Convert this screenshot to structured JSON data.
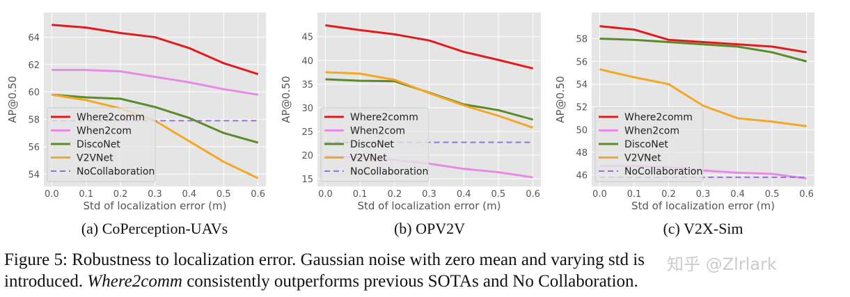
{
  "chart_data": [
    {
      "type": "line",
      "ylabel": "AP@0.50",
      "xlabel": "Std of localization error (m)",
      "caption": "(a) CoPerception-UAVs",
      "x": [
        0.0,
        0.1,
        0.2,
        0.3,
        0.4,
        0.5,
        0.6
      ],
      "xticks": [
        "0.0",
        "0.1",
        "0.2",
        "0.3",
        "0.4",
        "0.5",
        "0.6"
      ],
      "yticks": [
        54,
        56,
        58,
        60,
        62,
        64
      ],
      "ylim": [
        53.1,
        65.8
      ],
      "xlim": [
        -0.023,
        0.623
      ],
      "grid": true,
      "legend": "lower-left",
      "series": [
        {
          "name": "Where2comm",
          "color": "#e31a1c",
          "values": [
            64.9,
            64.7,
            64.3,
            64.0,
            63.2,
            62.1,
            61.3
          ]
        },
        {
          "name": "When2com",
          "color": "#e78ae6",
          "values": [
            61.6,
            61.6,
            61.5,
            61.1,
            60.7,
            60.2,
            59.8
          ]
        },
        {
          "name": "DiscoNet",
          "color": "#5b8a2a",
          "values": [
            59.8,
            59.6,
            59.5,
            58.9,
            58.1,
            57.0,
            56.3
          ]
        },
        {
          "name": "V2VNet",
          "color": "#f5a623",
          "values": [
            59.8,
            59.4,
            58.8,
            57.9,
            56.4,
            54.9,
            53.7
          ]
        },
        {
          "name": "NoCollaboration",
          "color": "#9370db",
          "dashed": true,
          "values": [
            57.9,
            57.9,
            57.9,
            57.9,
            57.9,
            57.9,
            57.9
          ]
        }
      ]
    },
    {
      "type": "line",
      "ylabel": "AP@0.50",
      "xlabel": "Std of localization error (m)",
      "caption": "(b) OPV2V",
      "x": [
        0.0,
        0.1,
        0.2,
        0.3,
        0.4,
        0.5,
        0.6
      ],
      "xticks": [
        "0.0",
        "0.1",
        "0.2",
        "0.3",
        "0.4",
        "0.5",
        "0.6"
      ],
      "yticks": [
        15,
        20,
        25,
        30,
        35,
        40,
        45
      ],
      "ylim": [
        13.4,
        50.1
      ],
      "xlim": [
        -0.023,
        0.623
      ],
      "grid": true,
      "legend": "lower-left",
      "series": [
        {
          "name": "Where2comm",
          "color": "#e31a1c",
          "values": [
            47.4,
            46.4,
            45.5,
            44.2,
            41.8,
            40.1,
            38.3
          ]
        },
        {
          "name": "When2com",
          "color": "#e78ae6",
          "values": [
            19.8,
            19.5,
            19.0,
            18.2,
            17.1,
            16.4,
            15.3
          ]
        },
        {
          "name": "DiscoNet",
          "color": "#5b8a2a",
          "values": [
            36.0,
            35.7,
            35.6,
            33.2,
            30.7,
            29.5,
            27.5
          ]
        },
        {
          "name": "V2VNet",
          "color": "#f5a623",
          "values": [
            37.5,
            37.2,
            35.9,
            33.1,
            30.5,
            28.3,
            25.8
          ]
        },
        {
          "name": "NoCollaboration",
          "color": "#9370db",
          "dashed": true,
          "values": [
            22.7,
            22.7,
            22.7,
            22.7,
            22.7,
            22.7,
            22.7
          ]
        }
      ]
    },
    {
      "type": "line",
      "ylabel": "AP@0.50",
      "xlabel": "Std of localization error (m)",
      "caption": "(c) V2X-Sim",
      "x": [
        0.0,
        0.1,
        0.2,
        0.3,
        0.4,
        0.5,
        0.6
      ],
      "xticks": [
        "0.0",
        "0.1",
        "0.2",
        "0.3",
        "0.4",
        "0.5",
        "0.6"
      ],
      "yticks": [
        46,
        48,
        50,
        52,
        54,
        56,
        58
      ],
      "ylim": [
        45.0,
        60.3
      ],
      "xlim": [
        -0.023,
        0.623
      ],
      "grid": true,
      "legend": "lower-left",
      "series": [
        {
          "name": "Where2comm",
          "color": "#e31a1c",
          "values": [
            59.1,
            58.8,
            57.9,
            57.7,
            57.5,
            57.3,
            56.8
          ]
        },
        {
          "name": "When2com",
          "color": "#e78ae6",
          "values": [
            46.8,
            46.8,
            46.7,
            46.4,
            46.2,
            46.1,
            45.7
          ]
        },
        {
          "name": "DiscoNet",
          "color": "#5b8a2a",
          "values": [
            58.0,
            57.9,
            57.7,
            57.5,
            57.3,
            56.8,
            56.0
          ]
        },
        {
          "name": "V2VNet",
          "color": "#f5a623",
          "values": [
            55.3,
            54.6,
            54.0,
            52.1,
            51.0,
            50.7,
            50.3
          ]
        },
        {
          "name": "NoCollaboration",
          "color": "#9370db",
          "dashed": true,
          "values": [
            45.8,
            45.8,
            45.8,
            45.8,
            45.8,
            45.8,
            45.8
          ]
        }
      ]
    }
  ],
  "figure_caption": {
    "label": "Figure 5:",
    "line1": "Robustness to localization error.  Gaussian noise with zero mean and varying std is",
    "line2_italic": "Where2comm",
    "line2_rest": " consistently outperforms previous SOTAs and No Collaboration.",
    "line2_prefix": "introduced. "
  },
  "watermark": "知乎 @Zlrlark"
}
